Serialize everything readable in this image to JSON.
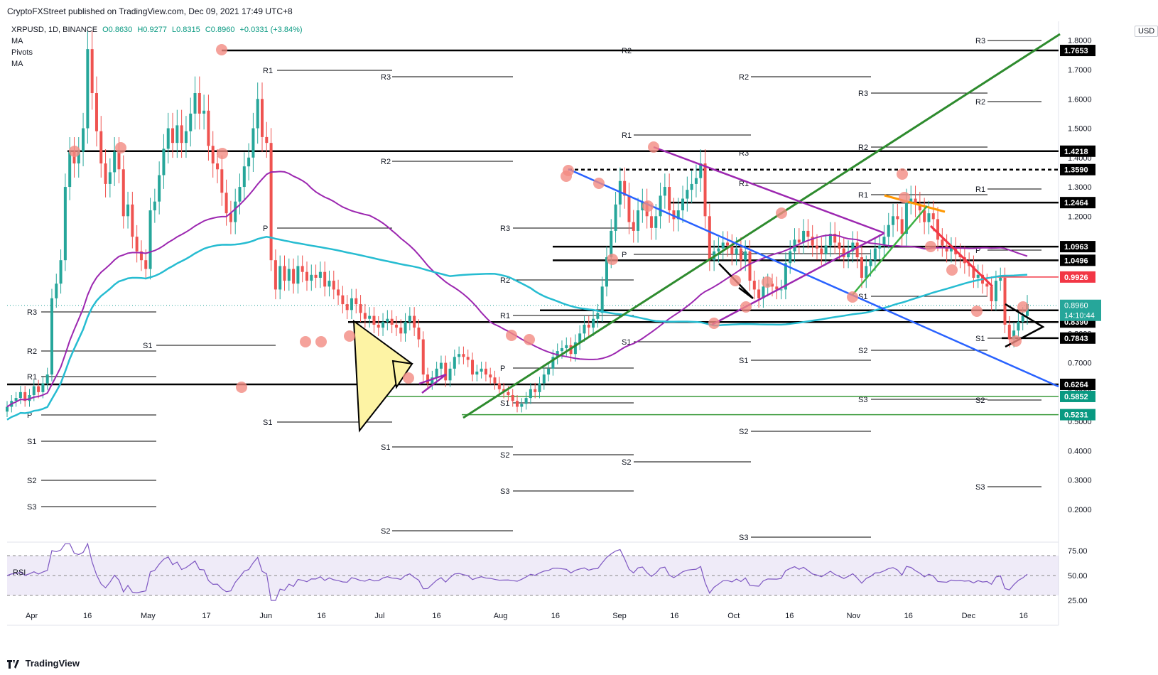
{
  "publisher": "CryptoFXStreet published on TradingView.com, Dec 09, 2021 17:49 UTC+8",
  "symbol": "XRPUSD, 1D, BINANCE",
  "ohlc": {
    "o": "O0.8630",
    "h": "H0.9277",
    "l": "L0.8315",
    "c": "C0.8960",
    "change": "+0.0331 (+3.84%)"
  },
  "indicators": [
    "MA",
    "Pivots",
    "MA"
  ],
  "currency_button": "USD",
  "rsi_label": "RSI",
  "footer_brand": "TradingView",
  "colors": {
    "up": "#26a69a",
    "down": "#ef5350",
    "ma_slow": "#26bcd1",
    "ma_fast": "#9c27b0",
    "green_line": "#2e8b2e",
    "blue_line": "#2962ff",
    "purple_line": "#9c27b0",
    "orange_line": "#ff9800",
    "red_line": "#f23645",
    "rsi": "#7e57c2",
    "highlight": "#f28b82"
  },
  "chart_data": {
    "type": "candlestick",
    "y_axis": {
      "scale": "linear",
      "ylim": [
        0.1,
        1.87
      ],
      "ticks": [
        "0.2000",
        "0.3000",
        "0.4000",
        "0.5000",
        "0.6000",
        "0.7000",
        "0.8000",
        "0.9000",
        "1.0000",
        "1.1000",
        "1.2000",
        "1.3000",
        "1.4000",
        "1.5000",
        "1.6000",
        "1.7000",
        "1.8000"
      ]
    },
    "x_axis": {
      "labels": [
        "Apr",
        "16",
        "May",
        "17",
        "Jun",
        "16",
        "Jul",
        "16",
        "Aug",
        "16",
        "Sep",
        "16",
        "Oct",
        "16",
        "Nov",
        "16",
        "Dec",
        "16"
      ],
      "label_dates": [
        "2021-04-01",
        "2021-04-16",
        "2021-05-01",
        "2021-05-17",
        "2021-06-01",
        "2021-06-16",
        "2021-07-01",
        "2021-07-16",
        "2021-08-01",
        "2021-08-16",
        "2021-09-01",
        "2021-09-16",
        "2021-10-01",
        "2021-10-16",
        "2021-11-01",
        "2021-11-16",
        "2021-12-01",
        "2021-12-16"
      ]
    },
    "last_price": "0.8960",
    "countdown": "14:10:44",
    "level_labels": [
      {
        "text": "1.7653",
        "bg": "#000000"
      },
      {
        "text": "1.4218",
        "bg": "#000000"
      },
      {
        "text": "1.3590",
        "bg": "#000000"
      },
      {
        "text": "1.2464",
        "bg": "#000000"
      },
      {
        "text": "1.0963",
        "bg": "#000000"
      },
      {
        "text": "1.0496",
        "bg": "#000000"
      },
      {
        "text": "0.9926",
        "bg": "#f23645"
      },
      {
        "text": "0.8791",
        "bg": "#000000"
      },
      {
        "text": "0.8390",
        "bg": "#000000"
      },
      {
        "text": "0.7843",
        "bg": "#000000"
      },
      {
        "text": "0.6264",
        "bg": "#000000"
      },
      {
        "text": "0.5852",
        "bg": "#089981"
      },
      {
        "text": "0.5231",
        "bg": "#089981"
      }
    ],
    "levels": [
      1.7653,
      1.4218,
      1.359,
      1.2464,
      1.0963,
      1.0496,
      0.9926,
      0.8791,
      0.839,
      0.7843,
      0.6264,
      0.5852,
      0.5231
    ],
    "pivot_labels": [
      "R3",
      "R2",
      "R1",
      "P",
      "S1",
      "S2",
      "S3"
    ],
    "rsi": {
      "ticks": [
        "75.00",
        "50.00",
        "25.00"
      ],
      "band": [
        30,
        70
      ]
    },
    "close_series": [
      0.55,
      0.57,
      0.58,
      0.6,
      0.57,
      0.59,
      0.62,
      0.6,
      0.63,
      0.66,
      0.92,
      0.97,
      1.05,
      1.3,
      1.42,
      1.38,
      1.42,
      1.5,
      1.77,
      1.62,
      1.49,
      1.38,
      1.31,
      1.35,
      1.42,
      1.36,
      1.2,
      1.24,
      1.13,
      1.08,
      1.05,
      1.02,
      1.22,
      1.25,
      1.34,
      1.43,
      1.5,
      1.45,
      1.51,
      1.45,
      1.49,
      1.55,
      1.62,
      1.55,
      1.56,
      1.44,
      1.38,
      1.36,
      1.28,
      1.21,
      1.18,
      1.25,
      1.3,
      1.37,
      1.4,
      1.5,
      1.6,
      1.47,
      1.45,
      1.05,
      0.95,
      1.03,
      0.98,
      1.02,
      0.97,
      1.03,
      1.01,
      0.98,
      1.0,
      0.99,
      1.01,
      0.96,
      0.98,
      0.95,
      0.93,
      0.9,
      0.88,
      0.92,
      0.9,
      0.87,
      0.85,
      0.86,
      0.83,
      0.82,
      0.84,
      0.85,
      0.83,
      0.82,
      0.8,
      0.84,
      0.86,
      0.82,
      0.78,
      0.66,
      0.63,
      0.65,
      0.68,
      0.7,
      0.64,
      0.68,
      0.72,
      0.73,
      0.72,
      0.71,
      0.66,
      0.67,
      0.68,
      0.66,
      0.65,
      0.63,
      0.61,
      0.6,
      0.59,
      0.57,
      0.55,
      0.56,
      0.58,
      0.61,
      0.6,
      0.63,
      0.66,
      0.68,
      0.72,
      0.74,
      0.75,
      0.76,
      0.73,
      0.77,
      0.8,
      0.83,
      0.82,
      0.85,
      0.87,
      0.96,
      1.06,
      1.15,
      1.24,
      1.32,
      1.27,
      1.18,
      1.15,
      1.22,
      1.25,
      1.2,
      1.16,
      1.2,
      1.27,
      1.3,
      1.22,
      1.19,
      1.22,
      1.26,
      1.29,
      1.31,
      1.33,
      1.38,
      1.2,
      1.05,
      1.08,
      1.09,
      1.11,
      1.1,
      1.07,
      1.09,
      1.05,
      1.08,
      0.98,
      0.95,
      0.92,
      0.96,
      0.97,
      0.96,
      0.95,
      0.95,
      1.04,
      1.08,
      1.12,
      1.11,
      1.15,
      1.13,
      1.1,
      1.09,
      1.07,
      1.1,
      1.14,
      1.11,
      1.09,
      1.06,
      1.08,
      1.11,
      1.06,
      0.99,
      1.03,
      1.05,
      1.09,
      1.1,
      1.13,
      1.17,
      1.2,
      1.19,
      1.14,
      1.25,
      1.26,
      1.24,
      1.22,
      1.18,
      1.21,
      1.19,
      1.12,
      1.1,
      1.08,
      1.09,
      1.07,
      1.06,
      1.04,
      1.03,
      0.99,
      1.0,
      0.97,
      0.96,
      0.91,
      0.98,
      0.99,
      0.83,
      0.78,
      0.81,
      0.84,
      0.86,
      0.9
    ]
  }
}
